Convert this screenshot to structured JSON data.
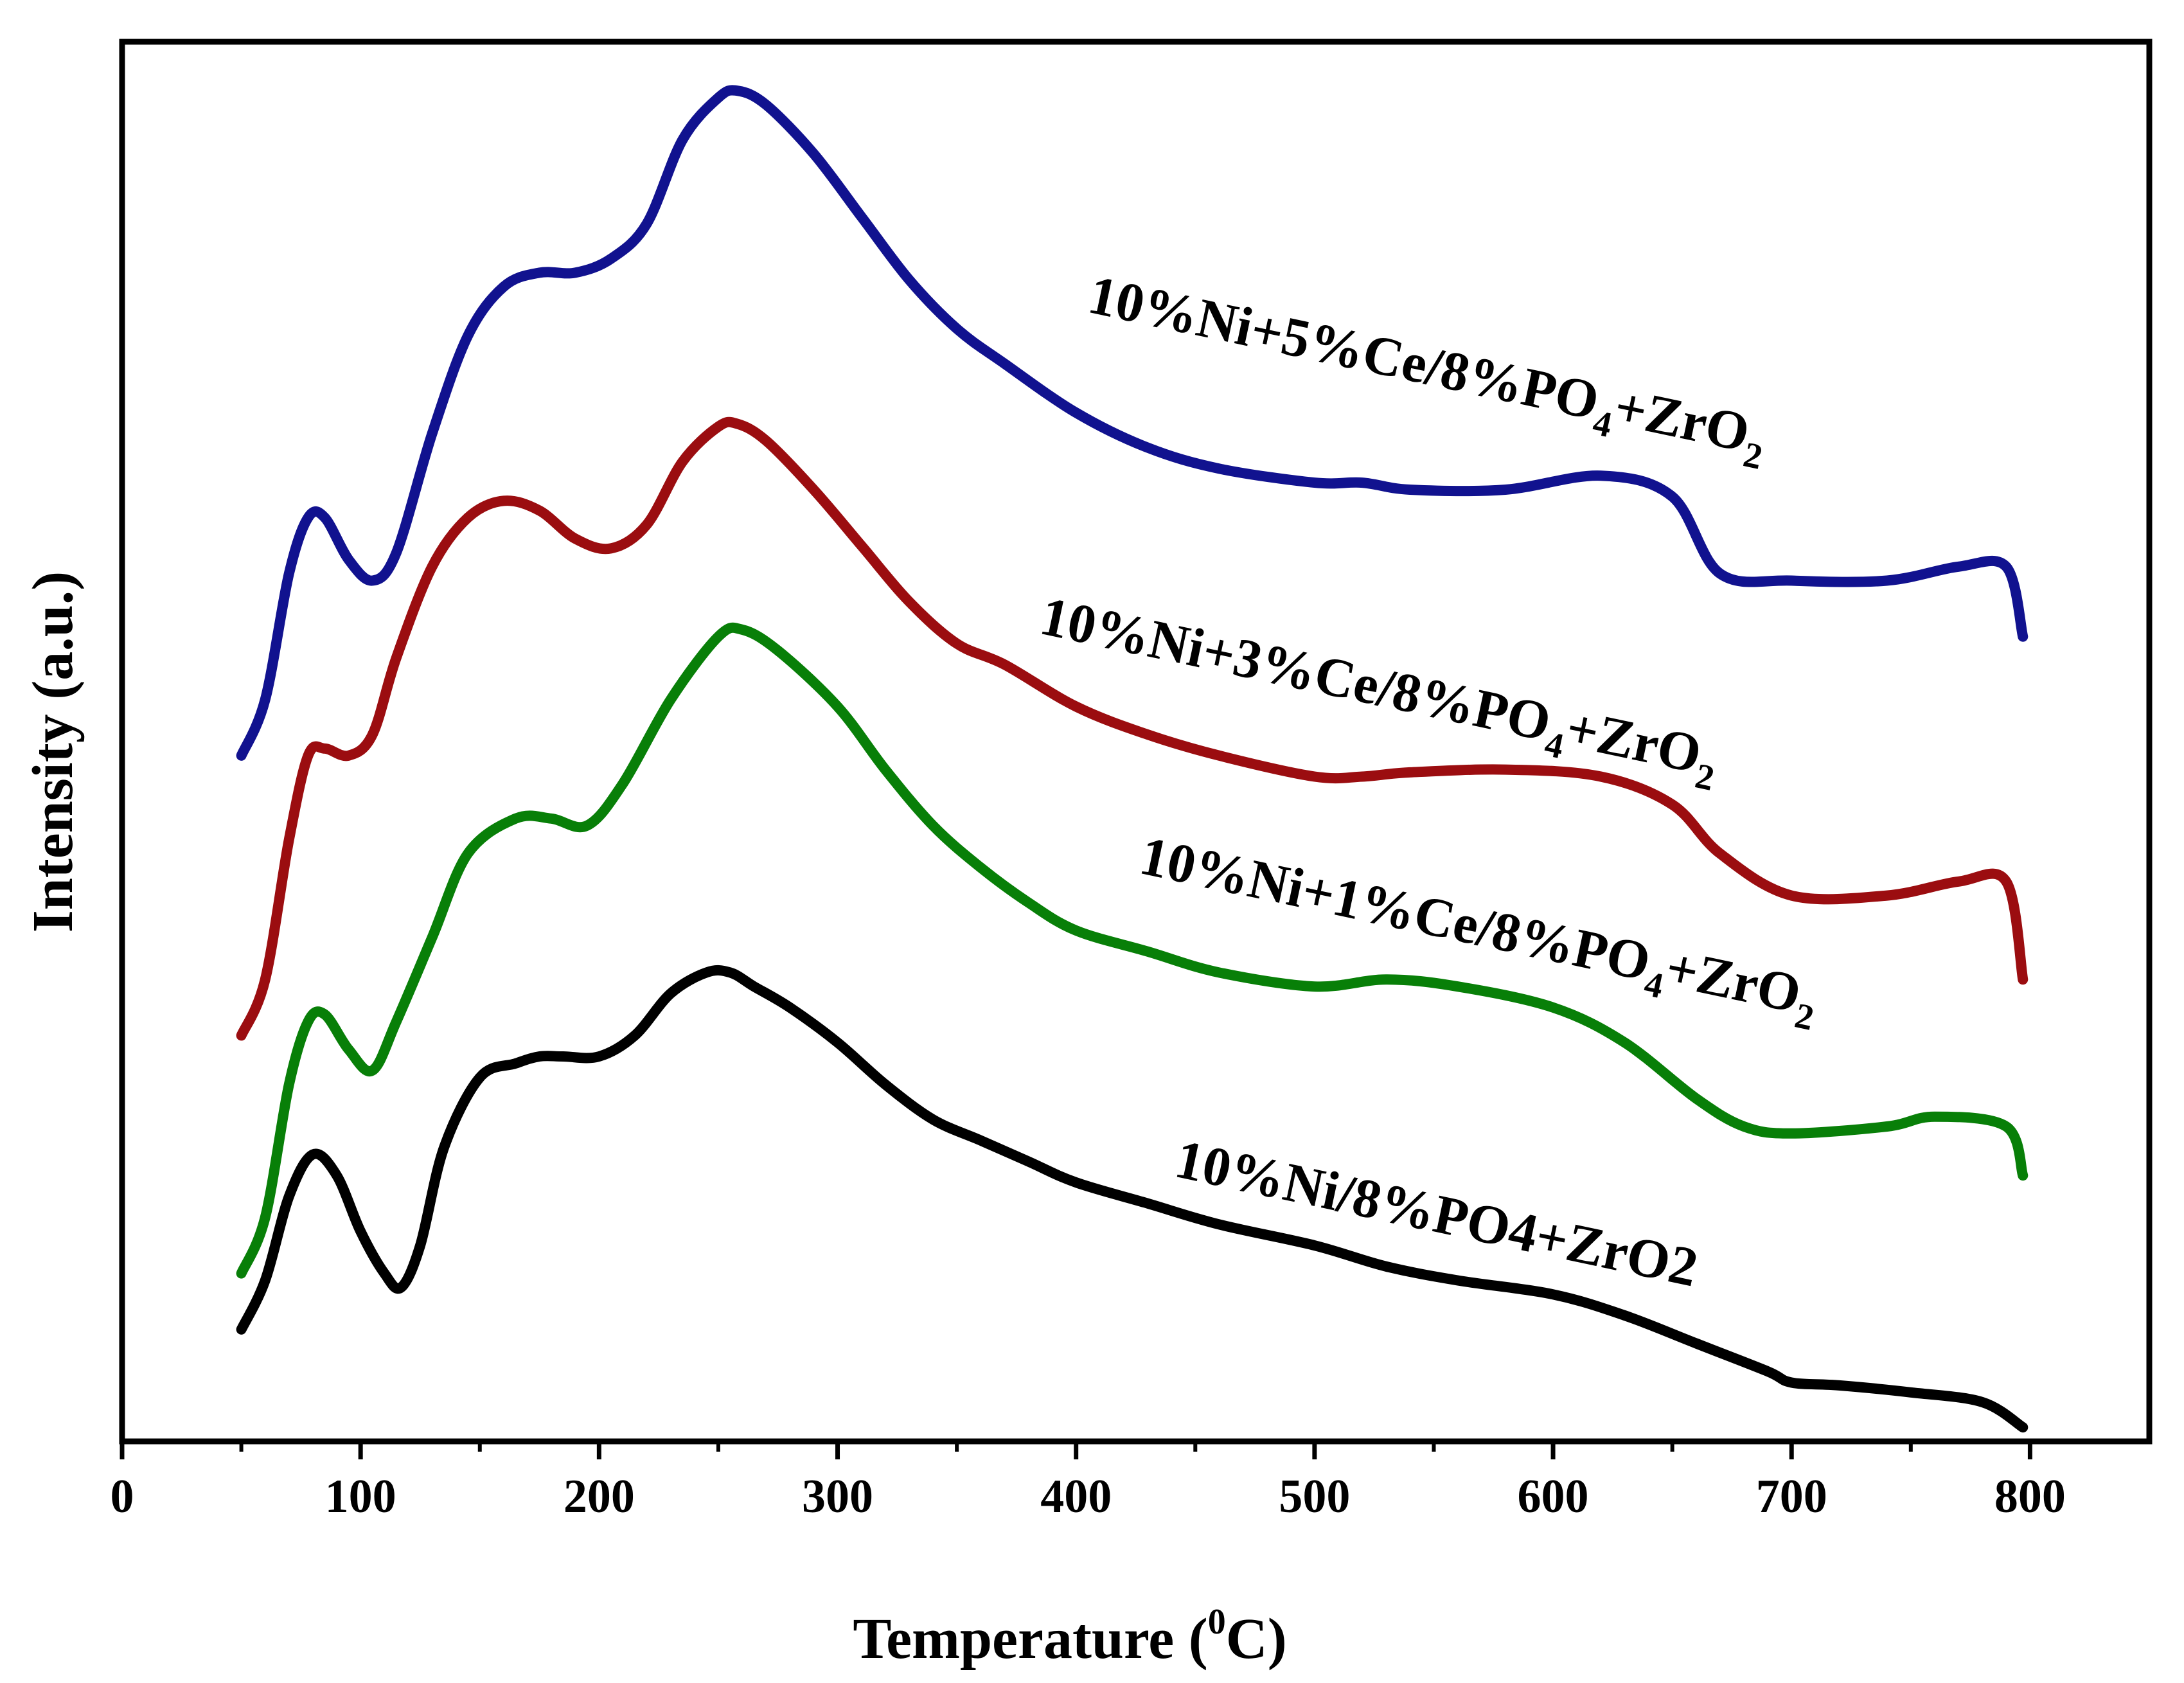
{
  "chart_data": {
    "type": "line",
    "title": "",
    "xlabel": "Temperature (",
    "xlabel_superscript": "0",
    "xlabel_unit": "C)",
    "ylabel": "Intensity (a.u.)",
    "xlim": [
      0,
      850
    ],
    "ylim": [
      0,
      1
    ],
    "xticks": [
      0,
      100,
      200,
      300,
      400,
      500,
      600,
      700,
      800
    ],
    "grid": false,
    "series": [
      {
        "name": "10%Ni/8%PO4+ZrO2",
        "label_parts": [
          "10%Ni/8%PO4+ZrO2"
        ],
        "color": "#000000",
        "x": [
          50,
          60,
          70,
          80,
          90,
          100,
          110,
          117,
          125,
          135,
          150,
          165,
          175,
          185,
          200,
          215,
          230,
          245,
          255,
          265,
          280,
          300,
          320,
          340,
          360,
          380,
          400,
          430,
          460,
          500,
          530,
          560,
          600,
          630,
          660,
          690,
          700,
          720,
          750,
          780,
          797
        ],
        "values": [
          0.08,
          0.115,
          0.175,
          0.205,
          0.19,
          0.15,
          0.12,
          0.11,
          0.14,
          0.21,
          0.26,
          0.27,
          0.275,
          0.275,
          0.275,
          0.29,
          0.32,
          0.335,
          0.335,
          0.325,
          0.31,
          0.285,
          0.255,
          0.23,
          0.215,
          0.2,
          0.185,
          0.17,
          0.155,
          0.14,
          0.125,
          0.115,
          0.105,
          0.09,
          0.07,
          0.05,
          0.042,
          0.04,
          0.035,
          0.028,
          0.01
        ]
      },
      {
        "name": "10%Ni+1%Ce/8%PO4+ZrO2",
        "label_parts": [
          "10%Ni+1%Ce/8%PO",
          "4",
          "+ZrO",
          "2"
        ],
        "color": "#087f08",
        "x": [
          50,
          60,
          70,
          78,
          85,
          95,
          105,
          115,
          130,
          145,
          165,
          180,
          195,
          210,
          230,
          250,
          260,
          275,
          300,
          320,
          340,
          360,
          380,
          400,
          430,
          460,
          500,
          530,
          560,
          600,
          630,
          660,
          680,
          700,
          740,
          760,
          790,
          797
        ],
        "values": [
          0.12,
          0.16,
          0.255,
          0.3,
          0.305,
          0.28,
          0.265,
          0.3,
          0.36,
          0.42,
          0.445,
          0.445,
          0.44,
          0.47,
          0.53,
          0.575,
          0.58,
          0.565,
          0.525,
          0.48,
          0.44,
          0.41,
          0.385,
          0.365,
          0.35,
          0.335,
          0.325,
          0.33,
          0.325,
          0.31,
          0.285,
          0.245,
          0.225,
          0.22,
          0.225,
          0.232,
          0.225,
          0.19
        ]
      },
      {
        "name": "10%Ni+3%Ce/8%PO4+ZrO2",
        "label_parts": [
          "10%Ni+3%Ce/8%PO",
          "4",
          "+ZrO",
          "2"
        ],
        "color": "#9b0d10",
        "x": [
          50,
          60,
          70,
          78,
          85,
          95,
          105,
          115,
          130,
          145,
          160,
          175,
          190,
          205,
          220,
          235,
          250,
          258,
          270,
          290,
          310,
          330,
          350,
          370,
          400,
          430,
          460,
          500,
          520,
          540,
          580,
          620,
          650,
          670,
          700,
          740,
          770,
          790,
          797
        ],
        "values": [
          0.29,
          0.33,
          0.43,
          0.49,
          0.495,
          0.49,
          0.505,
          0.56,
          0.625,
          0.66,
          0.672,
          0.665,
          0.645,
          0.638,
          0.655,
          0.7,
          0.725,
          0.727,
          0.715,
          0.68,
          0.64,
          0.6,
          0.57,
          0.555,
          0.525,
          0.505,
          0.49,
          0.475,
          0.475,
          0.478,
          0.48,
          0.475,
          0.455,
          0.42,
          0.39,
          0.39,
          0.4,
          0.4,
          0.33
        ]
      },
      {
        "name": "10%Ni+5%Ce/8%PO4+ZrO2",
        "label_parts": [
          "10%Ni+5%Ce/8%PO",
          "4",
          "+ZrO",
          "2"
        ],
        "color": "#11128f",
        "x": [
          50,
          60,
          70,
          78,
          85,
          95,
          105,
          115,
          130,
          145,
          160,
          175,
          190,
          205,
          220,
          235,
          250,
          258,
          270,
          290,
          310,
          330,
          350,
          370,
          400,
          430,
          460,
          500,
          520,
          540,
          580,
          620,
          650,
          670,
          700,
          740,
          770,
          790,
          797
        ],
        "values": [
          0.49,
          0.53,
          0.62,
          0.66,
          0.66,
          0.63,
          0.615,
          0.635,
          0.72,
          0.79,
          0.825,
          0.835,
          0.835,
          0.845,
          0.87,
          0.93,
          0.96,
          0.965,
          0.955,
          0.92,
          0.875,
          0.83,
          0.795,
          0.77,
          0.735,
          0.71,
          0.695,
          0.685,
          0.685,
          0.68,
          0.68,
          0.69,
          0.675,
          0.62,
          0.615,
          0.615,
          0.625,
          0.625,
          0.575
        ]
      }
    ]
  }
}
